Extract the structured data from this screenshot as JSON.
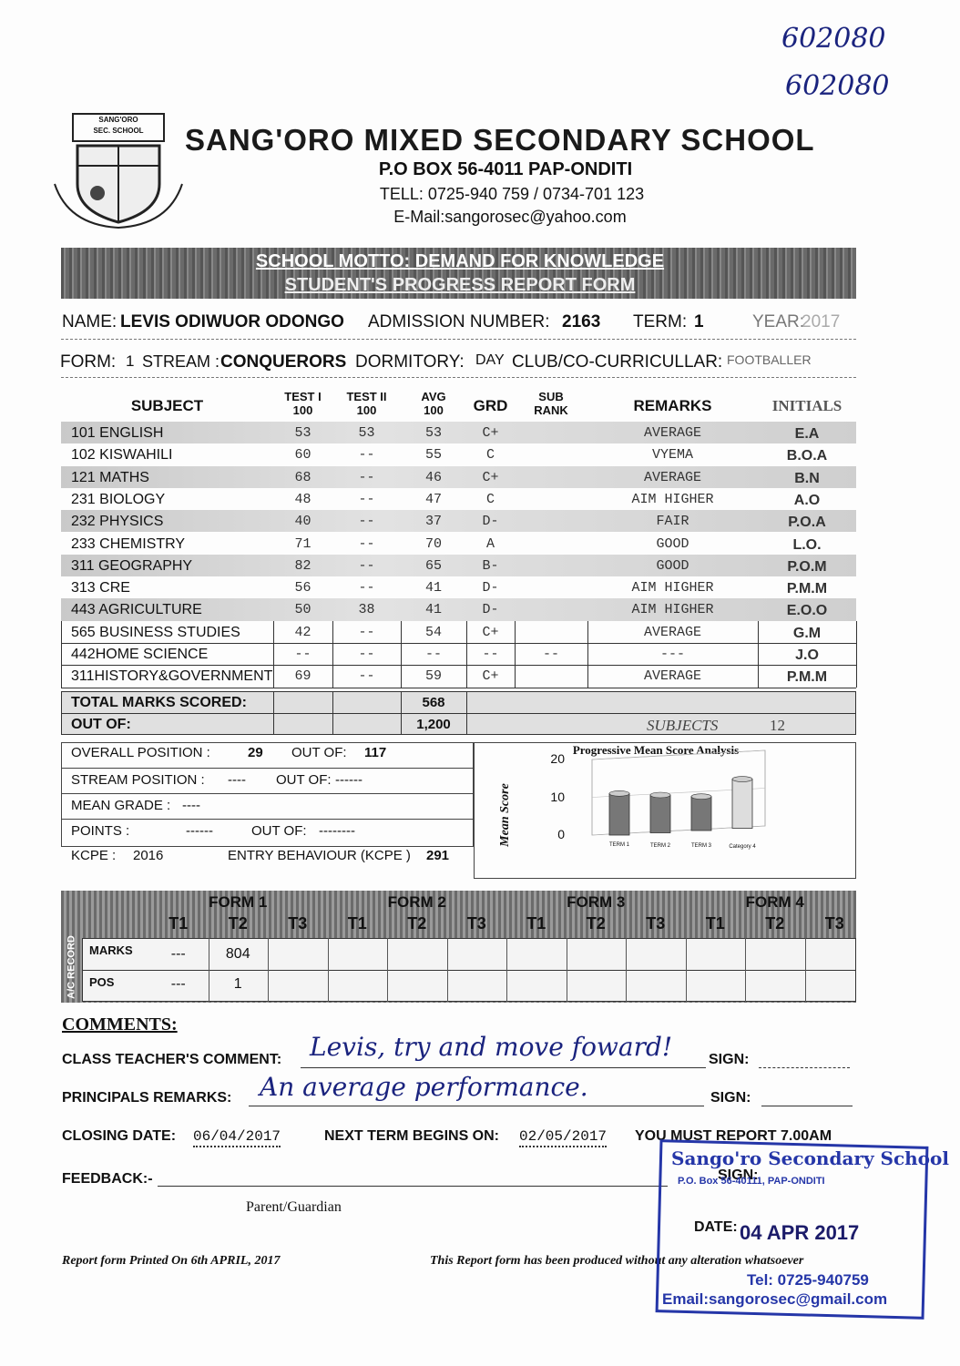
{
  "handwritten_ref": [
    "602080",
    "602080"
  ],
  "logo": {
    "top": "SANG'ORO",
    "sub": "SEC. SCHOOL"
  },
  "header": {
    "title": "SANG'ORO MIXED SECONDARY SCHOOL",
    "address": "P.O BOX 56-4011 PAP-ONDITI",
    "tel": "TELL: 0725-940 759 / 0734-701 123",
    "email": "E-Mail:sangorosec@yahoo.com"
  },
  "banner": {
    "motto": "SCHOOL MOTTO: DEMAND FOR KNOWLEDGE",
    "form_title": "STUDENT'S PROGRESS REPORT FORM"
  },
  "student": {
    "name_label": "NAME:",
    "name": "LEVIS ODIWUOR ODONGO",
    "adm_label": "ADMISSION NUMBER:",
    "adm": "2163",
    "term_label": "TERM:",
    "term": "1",
    "year_label": "YEAR:",
    "year": "2017",
    "form_label": "FORM:",
    "form": "1",
    "stream_label": "STREAM :",
    "stream": "CONQUERORS",
    "dorm_label": "DORMITORY:",
    "dorm": "DAY",
    "club_label": "CLUB/CO-CURRICULLAR:",
    "club": "FOOTBALLER"
  },
  "table": {
    "headers": [
      [
        "SUBJECT"
      ],
      [
        "TEST I",
        "100"
      ],
      [
        "TEST II",
        "100"
      ],
      [
        "AVG",
        "100"
      ],
      [
        "GRD"
      ],
      [
        "SUB",
        "RANK"
      ],
      [
        "REMARKS"
      ],
      [
        "INITIALS"
      ]
    ],
    "rows": [
      [
        "101 ENGLISH",
        "53",
        "53",
        "53",
        "C+",
        null,
        "AVERAGE",
        "E.A"
      ],
      [
        "102 KISWAHILI",
        "60",
        "--",
        "55",
        "C",
        null,
        "VYEMA",
        "B.O.A"
      ],
      [
        "121 MATHS",
        "68",
        "--",
        "46",
        "C+",
        null,
        "AVERAGE",
        "B.N"
      ],
      [
        "231 BIOLOGY",
        "48",
        "--",
        "47",
        "C",
        null,
        "AIM HIGHER",
        "A.O"
      ],
      [
        "232 PHYSICS",
        "40",
        "--",
        "37",
        "D-",
        null,
        "FAIR",
        "P.O.A"
      ],
      [
        "233 CHEMISTRY",
        "71",
        "--",
        "70",
        "A",
        null,
        "GOOD",
        "L.O."
      ],
      [
        "311 GEOGRAPHY",
        "82",
        "--",
        "65",
        "B-",
        null,
        "GOOD",
        "P.O.M"
      ],
      [
        "313 CRE",
        "56",
        "--",
        "41",
        "D-",
        null,
        "AIM HIGHER",
        "P.M.M"
      ],
      [
        "443 AGRICULTURE",
        "50",
        "38",
        "41",
        "D-",
        null,
        "AIM HIGHER",
        "E.O.O"
      ],
      [
        "565 BUSINESS STUDIES",
        "42",
        "--",
        "54",
        "C+",
        null,
        "AVERAGE",
        "G.M"
      ],
      [
        "442HOME SCIENCE",
        "--",
        "--",
        "--",
        "--",
        "--",
        "---",
        "J.O"
      ],
      [
        "311HISTORY&GOVERNMENT",
        "69",
        "--",
        "59",
        "C+",
        null,
        "AVERAGE",
        "P.M.M"
      ]
    ],
    "total": {
      "label": "TOTAL MARKS SCORED:",
      "value": "568"
    },
    "out_of": {
      "label": "OUT OF:",
      "value": "1,200",
      "subjects_label": "SUBJECTS",
      "subjects": "12"
    }
  },
  "position": {
    "overall_label": "OVERALL POSITION :",
    "overall": "29",
    "overall_out_label": "OUT OF:",
    "overall_out": "117",
    "stream_label": "STREAM POSITION :",
    "stream": "----",
    "stream_out_label": "OUT OF:",
    "stream_out": "------",
    "mean_label": "MEAN GRADE :",
    "mean": "----",
    "points_label": "POINTS :",
    "points": "------",
    "points_out_label": "OUT OF:",
    "points_out": "--------",
    "kcpe_label": "KCPE :",
    "kcpe": "2016",
    "entry_label": "ENTRY BEHAVIOUR (KCPE )",
    "entry": "291"
  },
  "mean_chart": {
    "title": "Progressive Mean Score Analysis",
    "y_label": "Mean Score",
    "ylim": [
      0,
      20
    ],
    "yticks": [
      0,
      10,
      20
    ],
    "categories": [
      "TERM 1",
      "TERM 2",
      "TERM 3",
      "Category 4"
    ],
    "values": [
      11,
      10,
      9,
      13
    ]
  },
  "ac_record": {
    "side_label": "A/C RECORD",
    "forms": [
      "FORM 1",
      "FORM 2",
      "FORM 3",
      "FORM 4"
    ],
    "terms": [
      "T1",
      "T2",
      "T3"
    ],
    "marks_label": "MARKS",
    "marks": [
      "---",
      "804",
      null,
      null,
      null,
      null,
      null,
      null,
      null,
      null,
      null,
      null
    ],
    "pos_label": "POS",
    "pos": [
      "---",
      "1",
      null,
      null,
      null,
      null,
      null,
      null,
      null,
      null,
      null,
      null
    ]
  },
  "comments": {
    "heading": "COMMENTS:",
    "teacher_label": "CLASS TEACHER'S COMMENT:",
    "teacher_comment": "Levis, try and move foward!",
    "sign_label": "SIGN:",
    "principal_label": "PRINCIPALS REMARKS:",
    "principal_remark": "An average performance.",
    "closing_label": "CLOSING DATE:",
    "closing": "06/04/2017",
    "next_label": "NEXT TERM BEGINS ON:",
    "next": "02/05/2017",
    "report": "YOU MUST REPORT 7.00AM",
    "feedback_label": "FEEDBACK:-",
    "parent": "Parent/Guardian",
    "date_label": "DATE:"
  },
  "footer": {
    "printed": "Report form Printed On 6th APRIL, 2017",
    "note": "This Report form has been produced without any alteration whatsoever"
  },
  "stamp": {
    "name": "Sango'ro Secondary School",
    "box": "P.O. Box 56-40111, PAP-ONDITI",
    "date": "04 APR 2017",
    "tel": "Tel: 0725-940759",
    "email": "Email:sangorosec@gmail.com"
  }
}
